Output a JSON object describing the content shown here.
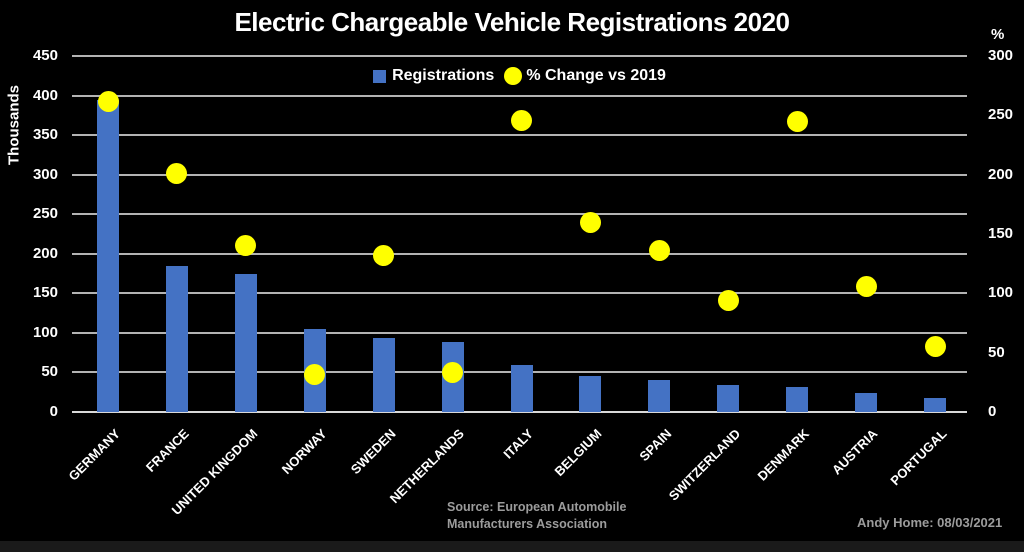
{
  "title": "Electric Chargeable Vehicle Registrations 2020",
  "legend": {
    "registrations_label": "Registrations",
    "pct_change_label": "% Change vs 2019"
  },
  "axes": {
    "left_unit_label": "Thousands",
    "right_unit_label": "%"
  },
  "footer": {
    "source_line1": "Source: European Automobile",
    "source_line2": "Manufacturers Association",
    "credit": "Andy Home: 08/03/2021"
  },
  "colors": {
    "background": "#000000",
    "bar": "#4472C4",
    "dot": "#FFFF00",
    "gridline": "#B3B3B3",
    "baseline": "#D9D9D9",
    "text": "#FFFFFF",
    "muted_text": "#9C9C9C"
  },
  "chart_data": {
    "type": "bar",
    "title": "Electric Chargeable Vehicle Registrations 2020",
    "categories": [
      "GERMANY",
      "FRANCE",
      "UNITED KINGDOM",
      "NORWAY",
      "SWEDEN",
      "NETHERLANDS",
      "ITALY",
      "BELGIUM",
      "SPAIN",
      "SWITZERLAND",
      "DENMARK",
      "AUSTRIA",
      "PORTUGAL"
    ],
    "series": [
      {
        "name": "Registrations",
        "type": "bar",
        "axis": "left",
        "unit": "thousands",
        "values": [
          395,
          185,
          174,
          105,
          94,
          88,
          59,
          45,
          40,
          34,
          32,
          24,
          18
        ]
      },
      {
        "name": "% Change vs 2019",
        "type": "scatter",
        "axis": "right",
        "unit": "percent",
        "values": [
          262,
          201,
          140,
          32,
          132,
          33,
          246,
          160,
          136,
          94,
          245,
          106,
          55
        ]
      }
    ],
    "left_axis": {
      "label": "Thousands",
      "min": 0,
      "max": 450,
      "tick_step": 50
    },
    "right_axis": {
      "label": "%",
      "min": 0,
      "max": 300,
      "tick_step": 50
    },
    "grid": true,
    "legend_position": "top-center"
  }
}
